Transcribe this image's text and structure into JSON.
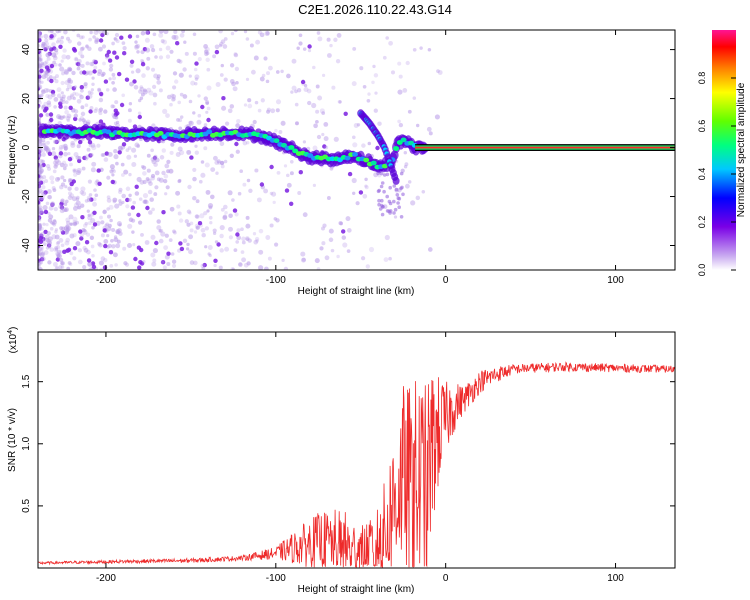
{
  "title": "C2E1.2026.110.22.43.G14",
  "chart_data": [
    {
      "type": "heatmap",
      "xlabel": "Height of straight line (km)",
      "ylabel": "Frequency (Hz)",
      "xlim": [
        -240,
        135
      ],
      "ylim": [
        -50,
        48
      ],
      "xticks": [
        -200,
        -100,
        0,
        100
      ],
      "xtick_labels": [
        "-200",
        "-100",
        "0",
        "100"
      ],
      "yticks": [
        -40,
        -20,
        0,
        20,
        40
      ],
      "ytick_labels": [
        "-40",
        "-20",
        "0",
        "20",
        "40"
      ],
      "colorbar": {
        "label": "Normalized spectral amplitude",
        "range": [
          0,
          1
        ],
        "ticks": [
          0.0,
          0.2,
          0.4,
          0.6,
          0.8
        ],
        "tick_labels": [
          "0.0",
          "0.2",
          "0.4",
          "0.6",
          "0.8"
        ]
      },
      "ridge": {
        "x": [
          -240,
          -200,
          -160,
          -130,
          -110,
          -95,
          -80,
          -65,
          -55,
          -45,
          -38,
          -32,
          -28,
          -24,
          -18,
          -10,
          0,
          10,
          135
        ],
        "freq": [
          7,
          6,
          5,
          6,
          5,
          1,
          -4,
          -5,
          -3,
          -6,
          -8,
          -6,
          2,
          3,
          0,
          0,
          1,
          0,
          0
        ]
      },
      "branch": {
        "x": [
          -50,
          -45,
          -40,
          -36,
          -32,
          -29
        ],
        "freq": [
          14,
          10,
          5,
          0,
          -8,
          -14
        ]
      }
    },
    {
      "type": "line",
      "xlabel": "Height of straight line (km)",
      "ylabel": "SNR (10 * v/v)",
      "scale_label": "(x10",
      "scale_exp": "4",
      "xlim": [
        -240,
        135
      ],
      "ylim": [
        0.0,
        1.9
      ],
      "xticks": [
        -200,
        -100,
        0,
        100
      ],
      "xtick_labels": [
        "-200",
        "-100",
        "0",
        "100"
      ],
      "yticks": [
        0.5,
        1.0,
        1.5
      ],
      "ytick_labels": [
        "0.5",
        "1.0",
        "1.5"
      ],
      "series": [
        {
          "name": "SNR",
          "color": "#ee2a2a",
          "envelope": {
            "x": [
              -240,
              -200,
              -150,
              -120,
              -100,
              -85,
              -75,
              -65,
              -55,
              -48,
              -42,
              -36,
              -32,
              -28,
              -24,
              -20,
              -16,
              -12,
              -8,
              -4,
              0,
              5,
              10,
              15,
              20,
              30,
              40,
              50,
              70,
              100,
              135
            ],
            "y": [
              0.04,
              0.05,
              0.06,
              0.08,
              0.12,
              0.18,
              0.22,
              0.2,
              0.15,
              0.13,
              0.16,
              0.25,
              0.45,
              0.65,
              0.75,
              0.55,
              0.7,
              0.6,
              0.95,
              1.1,
              1.2,
              1.3,
              1.35,
              1.42,
              1.5,
              1.56,
              1.6,
              1.61,
              1.62,
              1.61,
              1.6
            ]
          },
          "noise": {
            "x": [
              -240,
              -120,
              -100,
              -80,
              -60,
              -50,
              -40,
              -30,
              -20,
              -12,
              -5,
              0,
              10,
              40,
              135
            ],
            "amp": [
              0.01,
              0.02,
              0.05,
              0.2,
              0.3,
              0.2,
              0.35,
              0.6,
              0.9,
              0.9,
              0.5,
              0.3,
              0.12,
              0.04,
              0.03
            ]
          }
        }
      ]
    }
  ]
}
